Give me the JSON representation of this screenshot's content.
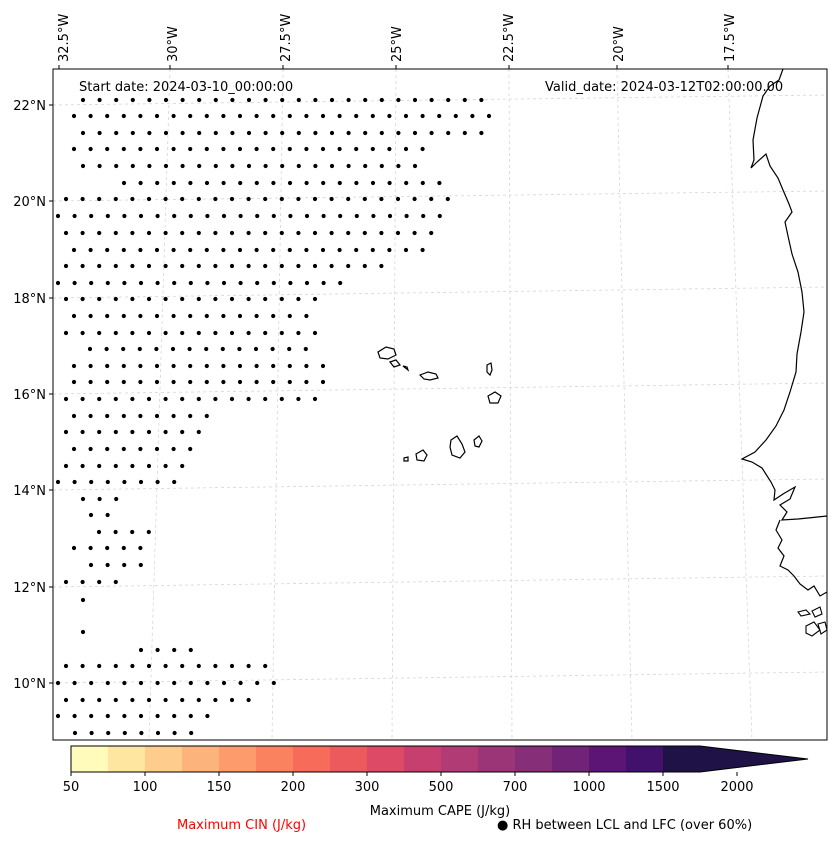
{
  "map": {
    "start_date": "Start date: 2024-03-10_00:00:00",
    "valid_date": "Valid_date: 2024-03-12T02:00:00.00",
    "lon_labels": [
      "32.5°W",
      "30°W",
      "27.5°W",
      "25°W",
      "22.5°W",
      "20°W",
      "17.5°W"
    ],
    "lat_labels": [
      "22°N",
      "20°N",
      "18°N",
      "16°N",
      "14°N",
      "12°N",
      "10°N"
    ]
  },
  "colorbar": {
    "label": "Maximum CAPE (J/kg)",
    "ticks": [
      "50",
      "100",
      "150",
      "200",
      "300",
      "500",
      "700",
      "1000",
      "1500",
      "2000"
    ],
    "colors": [
      "#fffcbb",
      "#fee5a0",
      "#fecc8c",
      "#fdb47c",
      "#fd9b6c",
      "#fb825f",
      "#f66b59",
      "#ec5a5d",
      "#dc4a66",
      "#c73f6f",
      "#b13b75",
      "#9c3577",
      "#862e78",
      "#712477",
      "#5c1575",
      "#42116b",
      "#1f1246"
    ]
  },
  "legend": {
    "cin_label": "Maximum CIN (J/kg)",
    "cin_color": "#ff0000",
    "rh_label": "RH between LCL and LFC (over 60%)",
    "rh_marker": "●"
  }
}
